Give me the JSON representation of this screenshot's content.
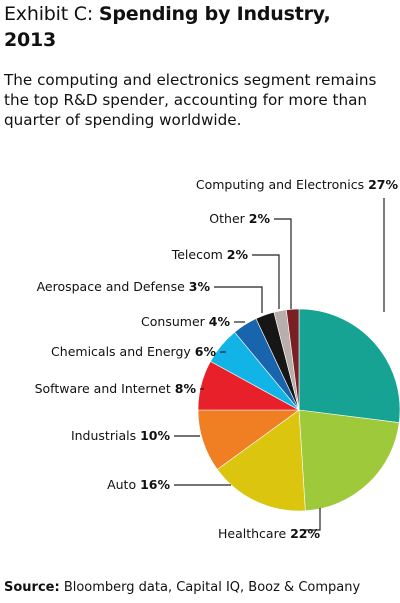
{
  "exhibit_label": "Exhibit C:",
  "title_part1": "Spending by Industry,",
  "title_part2": "2013",
  "subtitle": "The computing and electronics segment remains the top R&D spender, accounting for more than quarter of spending worldwide.",
  "source_label": "Source:",
  "source_text": "Bloomberg data, Capital IQ, Booz & Company",
  "chart_data": {
    "type": "pie",
    "title": "Spending by Industry, 2013",
    "slices": [
      {
        "label": "Computing and Electronics",
        "pct_label": "27%",
        "value": 27,
        "color": "#17a394"
      },
      {
        "label": "Healthcare",
        "pct_label": "22%",
        "value": 22,
        "color": "#9dc93a"
      },
      {
        "label": "Auto",
        "pct_label": "16%",
        "value": 16,
        "color": "#dcc50f"
      },
      {
        "label": "Industrials",
        "pct_label": "10%",
        "value": 10,
        "color": "#f07e22"
      },
      {
        "label": "Software and Internet",
        "pct_label": "8%",
        "value": 8,
        "color": "#e8202a"
      },
      {
        "label": "Chemicals and Energy",
        "pct_label": "6%",
        "value": 6,
        "color": "#12b3e6"
      },
      {
        "label": "Consumer",
        "pct_label": "4%",
        "value": 4,
        "color": "#1864ad"
      },
      {
        "label": "Aerospace and Defense",
        "pct_label": "3%",
        "value": 3,
        "color": "#161616"
      },
      {
        "label": "Telecom",
        "pct_label": "2%",
        "value": 2,
        "color": "#b8aeab"
      },
      {
        "label": "Other",
        "pct_label": "2%",
        "value": 2,
        "color": "#7a1f24"
      }
    ]
  }
}
